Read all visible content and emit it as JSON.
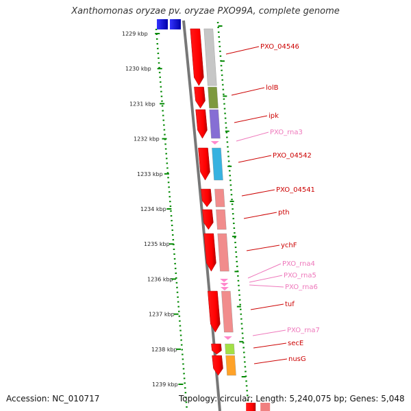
{
  "title": "Xanthomonas oryzae pv. oryzae PXO99A, complete genome",
  "accession": "Accession: NC_010717",
  "topology": "Topology: circular; Length: 5,240,075 bp; Genes: 5,048",
  "colors": {
    "gene": "#ff0000",
    "rna": "#ff88cc",
    "label_gene": "#cc0000",
    "label_rna": "#ee77bb",
    "tick": "#008800",
    "backbone": "#777777"
  },
  "kbp_ticks": [
    "1229 kbp",
    "1230 kbp",
    "1231 kbp",
    "1232 kbp",
    "1233 kbp",
    "1234 kbp",
    "1235 kbp",
    "1236 kbp",
    "1237 kbp",
    "1238 kbp",
    "1239 kbp"
  ],
  "features": [
    {
      "name": "PXO_04546",
      "type": "gene",
      "cog_color": "#c0c0c0"
    },
    {
      "name": "lolB",
      "type": "gene",
      "cog_color": "#6f8f2a"
    },
    {
      "name": "ipk",
      "type": "gene",
      "cog_color": "#7a5fd0"
    },
    {
      "name": "PXO_rna3",
      "type": "rna"
    },
    {
      "name": "PXO_04542",
      "type": "gene",
      "cog_color": "#22aadd"
    },
    {
      "name": "PXO_04541",
      "type": "gene",
      "cog_color": "#f08080"
    },
    {
      "name": "pth",
      "type": "gene",
      "cog_color": "#f08080"
    },
    {
      "name": "ychF",
      "type": "gene",
      "cog_color": "#f08080"
    },
    {
      "name": "PXO_rna4",
      "type": "rna"
    },
    {
      "name": "PXO_rna5",
      "type": "rna"
    },
    {
      "name": "PXO_rna6",
      "type": "rna"
    },
    {
      "name": "tuf",
      "type": "gene",
      "cog_color": "#f08080"
    },
    {
      "name": "PXO_rna7",
      "type": "rna"
    },
    {
      "name": "secE",
      "type": "gene",
      "cog_color": "#99dd33"
    },
    {
      "name": "nusG",
      "type": "gene",
      "cog_color": "#ff9911"
    }
  ]
}
